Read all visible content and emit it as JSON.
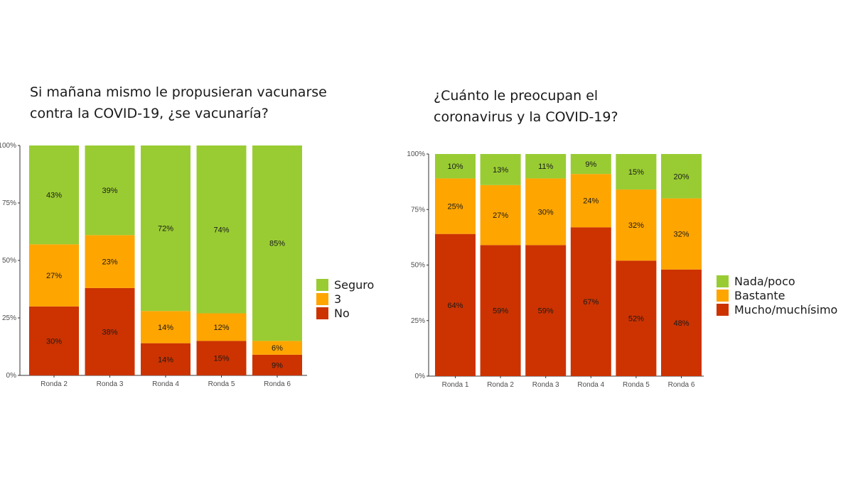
{
  "colors": {
    "red": "#cc3300",
    "orange": "#ffa500",
    "green": "#99cc33"
  },
  "chart_data": [
    {
      "type": "bar",
      "stacked": true,
      "title": "Si mañana mismo le propusieran vacunarse contra la COVID-19, ¿se vacunaría?",
      "categories": [
        "Ronda 2",
        "Ronda 3",
        "Ronda 4",
        "Ronda 5",
        "Ronda 6"
      ],
      "series": [
        {
          "name": "No",
          "color": "#cc3300",
          "values": [
            30,
            38,
            14,
            15,
            9
          ],
          "labels": [
            "30%",
            "38%",
            "14%",
            "15%",
            "9%"
          ]
        },
        {
          "name": "3",
          "color": "#ffa500",
          "values": [
            27,
            23,
            14,
            12,
            6
          ],
          "labels": [
            "27%",
            "23%",
            "14%",
            "12%",
            "6%"
          ]
        },
        {
          "name": "Seguro",
          "color": "#99cc33",
          "values": [
            43,
            39,
            72,
            74,
            85
          ],
          "labels": [
            "43%",
            "39%",
            "72%",
            "74%",
            "85%"
          ]
        }
      ],
      "legend_order": [
        "Seguro",
        "3",
        "No"
      ],
      "yticks": [
        "0%",
        "25%",
        "50%",
        "75%",
        "100%"
      ],
      "ylim": [
        0,
        100
      ],
      "legend_position": "right"
    },
    {
      "type": "bar",
      "stacked": true,
      "title": "¿Cuánto le preocupan el coronavirus y la COVID-19?",
      "categories": [
        "Ronda 1",
        "Ronda 2",
        "Ronda 3",
        "Ronda 4",
        "Ronda 5",
        "Ronda 6"
      ],
      "series": [
        {
          "name": "Mucho/muchísimo",
          "color": "#cc3300",
          "values": [
            64,
            59,
            59,
            67,
            52,
            48
          ],
          "labels": [
            "64%",
            "59%",
            "59%",
            "67%",
            "52%",
            "48%"
          ]
        },
        {
          "name": "Bastante",
          "color": "#ffa500",
          "values": [
            25,
            27,
            30,
            24,
            32,
            32
          ],
          "labels": [
            "25%",
            "27%",
            "30%",
            "24%",
            "32%",
            "32%"
          ]
        },
        {
          "name": "Nada/poco",
          "color": "#99cc33",
          "values": [
            10,
            13,
            11,
            9,
            15,
            20
          ],
          "labels": [
            "10%",
            "13%",
            "11%",
            "9%",
            "15%",
            "20%"
          ]
        }
      ],
      "legend_order": [
        "Nada/poco",
        "Bastante",
        "Mucho/muchísimo"
      ],
      "yticks": [
        "0%",
        "25%",
        "50%",
        "75%",
        "100%"
      ],
      "ylim": [
        0,
        100
      ],
      "legend_position": "right"
    }
  ]
}
